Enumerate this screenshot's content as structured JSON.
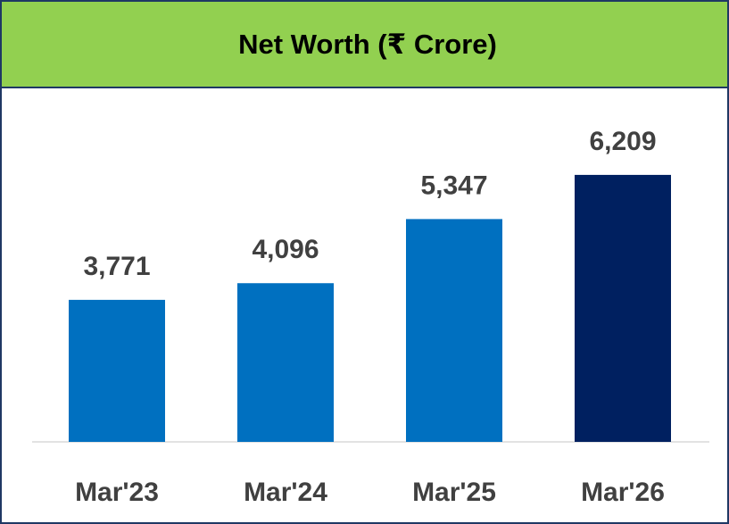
{
  "chart_data": {
    "type": "bar",
    "title": "Net Worth (₹ Crore)",
    "categories": [
      "Mar'23",
      "Mar'24",
      "Mar'25",
      "Mar'26"
    ],
    "values": [
      3771,
      4096,
      5347,
      6209
    ],
    "value_labels": [
      "3,771",
      "4,096",
      "5,347",
      "6,209"
    ],
    "colors": [
      "#0070c0",
      "#0070c0",
      "#0070c0",
      "#002060"
    ],
    "ylim": [
      1000,
      7000
    ]
  }
}
